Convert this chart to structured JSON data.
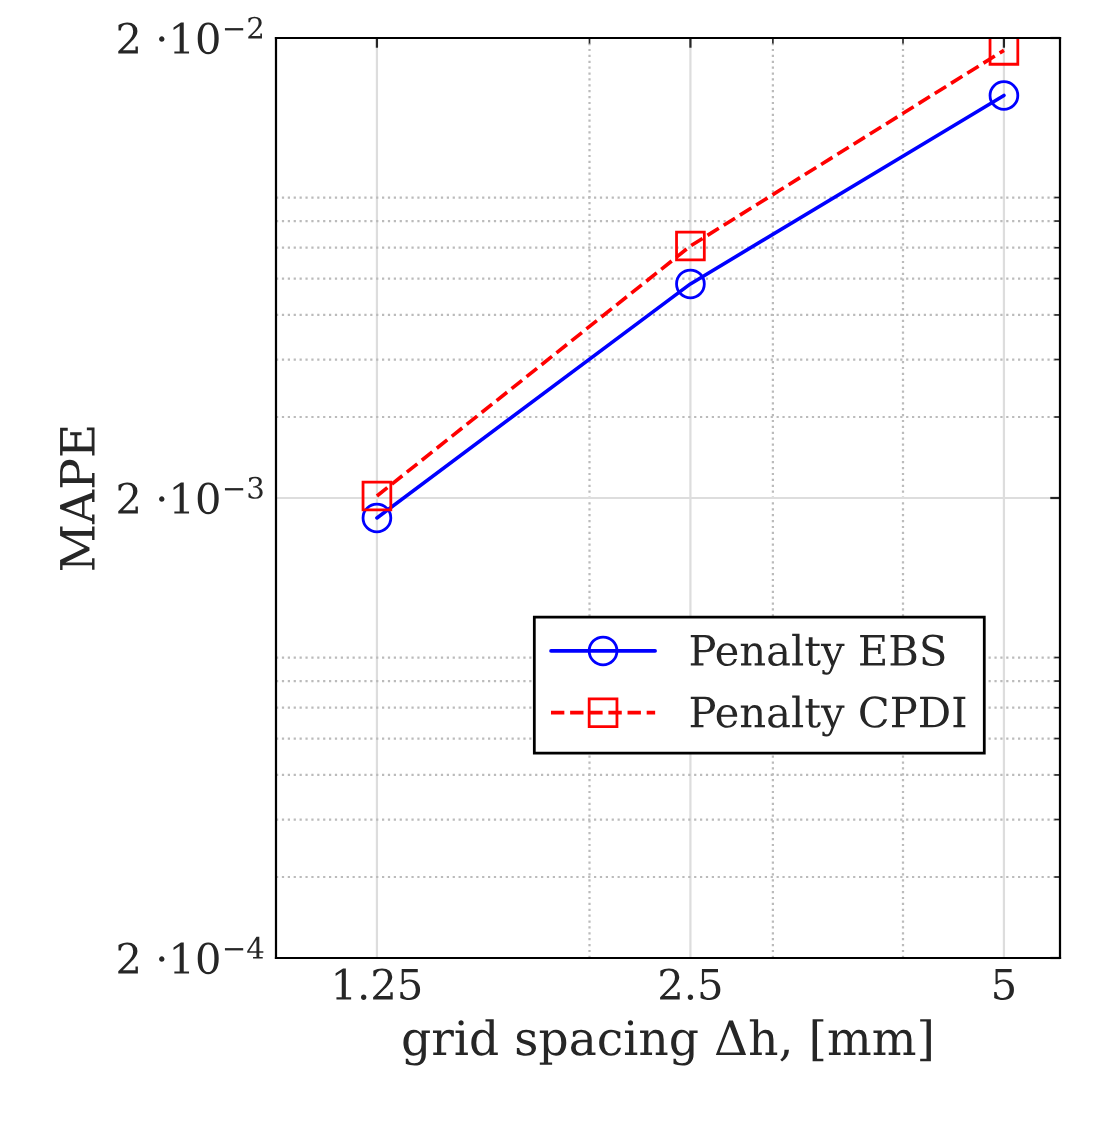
{
  "chart_data": {
    "type": "line",
    "xlabel": "grid spacing Δh, [mm]",
    "ylabel": "MAPE",
    "log": "xy",
    "grid": true,
    "legend": "lower right",
    "xlim": [
      1,
      5.66
    ],
    "ylim": [
      0.0002,
      0.02
    ],
    "xticks": [
      1.25,
      2.5,
      5
    ],
    "yticks": [
      {
        "value": 0.0002,
        "label": "2 ·10$^{−4}$"
      },
      {
        "value": 0.002,
        "label": "2 ·10$^{−3}$"
      },
      {
        "value": 0.02,
        "label": "2 ·10$^{−2}$"
      }
    ],
    "series": [
      {
        "name": "Penalty EBS",
        "color": "#0000ff",
        "x": [
          1.25,
          2.5,
          5
        ],
        "values": [
          0.00181,
          0.00584,
          0.015
        ],
        "marker": "circle",
        "line_style": "solid"
      },
      {
        "name": "Penalty CPDI",
        "color": "#ff0000",
        "x": [
          1.25,
          2.5,
          5
        ],
        "values": [
          0.00202,
          0.00706,
          0.0188
        ],
        "marker": "square",
        "line_style": "dashed"
      }
    ]
  }
}
